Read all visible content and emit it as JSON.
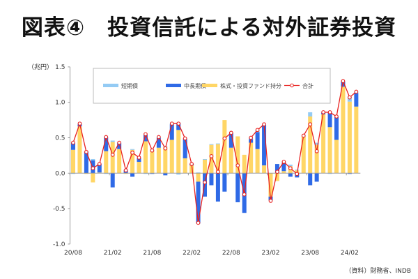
{
  "title": "図表④　投資信託による対外証券投資",
  "source": "（資料）財務省、INDB",
  "chart_data": {
    "type": "bar",
    "title": "図表④　投資信託による対外証券投資",
    "ylabel": "（兆円）",
    "ylim": [
      -1.0,
      1.5
    ],
    "yticks": [
      "1.5",
      "1.0",
      "0.5",
      "0.0",
      "-0.5",
      "-1.0"
    ],
    "ytick_values": [
      1.5,
      1.0,
      0.5,
      0.0,
      -0.5,
      -1.0
    ],
    "xtick_labels": [
      "20/08",
      "21/02",
      "21/08",
      "22/02",
      "22/08",
      "23/02",
      "23/08",
      "24/02"
    ],
    "xtick_index": [
      0,
      6,
      12,
      18,
      24,
      30,
      36,
      42
    ],
    "categories": [
      "20/08",
      "20/09",
      "20/10",
      "20/11",
      "20/12",
      "21/01",
      "21/02",
      "21/03",
      "21/04",
      "21/05",
      "21/06",
      "21/07",
      "21/08",
      "21/09",
      "21/10",
      "21/11",
      "21/12",
      "22/01",
      "22/02",
      "22/03",
      "22/04",
      "22/05",
      "22/06",
      "22/07",
      "22/08",
      "22/09",
      "22/10",
      "22/11",
      "22/12",
      "23/01",
      "23/02",
      "23/03",
      "23/04",
      "23/05",
      "23/06",
      "23/07",
      "23/08",
      "23/09",
      "23/10",
      "23/11",
      "23/12",
      "24/01",
      "24/02",
      "24/03"
    ],
    "legend_position": "top",
    "series": [
      {
        "name": "短期債",
        "kind": "bar",
        "color": "#94cbf4",
        "values": [
          -0.01,
          0.01,
          0.01,
          0.02,
          0,
          -0.01,
          0.02,
          0,
          0.01,
          0.01,
          0.01,
          -0.01,
          0.01,
          0.01,
          0.01,
          0.01,
          -0.02,
          0.01,
          0,
          0.01,
          0.01,
          0.01,
          0.01,
          0,
          0.01,
          0,
          0,
          0.02,
          0.03,
          0.01,
          -0.01,
          0,
          0.02,
          0.02,
          0.01,
          0.01,
          0.06,
          0.03,
          0.01,
          -0.01,
          0.01,
          0.01,
          0.07,
          0.02
        ]
      },
      {
        "name": "中長期債",
        "kind": "bar",
        "color": "#2f6ae6",
        "values": [
          0.1,
          0.03,
          0.3,
          0.18,
          0.12,
          0.2,
          -0.2,
          0.09,
          0.04,
          -0.05,
          0.05,
          0.09,
          -0.01,
          0.14,
          -0.03,
          0.22,
          0.1,
          0.27,
          0.02,
          -0.59,
          -0.33,
          -0.17,
          -0.4,
          -0.26,
          0.2,
          -0.41,
          -0.56,
          0.05,
          0.24,
          0.57,
          -0.05,
          0.13,
          0.11,
          -0.05,
          -0.06,
          0,
          -0.17,
          -0.12,
          0.02,
          0.21,
          0.32,
          0.07,
          -0.01,
          0.19
        ]
      },
      {
        "name": "株式・投資ファンド持分",
        "kind": "bar",
        "color": "#ffd666",
        "values": [
          0.33,
          0.66,
          -0.01,
          -0.13,
          0.01,
          0.31,
          0.44,
          0.34,
          -0.01,
          0.33,
          0.16,
          0.45,
          0.32,
          0.36,
          0.37,
          0.47,
          0.61,
          0.21,
          0.11,
          -0.12,
          0.19,
          0.4,
          0.41,
          0.75,
          0.36,
          0.52,
          0.26,
          0.43,
          0.34,
          0.11,
          -0.33,
          -0.11,
          0.03,
          0.1,
          0.04,
          0.52,
          0.8,
          0.4,
          0.83,
          0.65,
          0.47,
          1.22,
          1.01,
          0.94
        ]
      },
      {
        "name": "合計",
        "kind": "line",
        "color": "#e8201e",
        "values": [
          0.43,
          0.7,
          0.3,
          0.07,
          0.13,
          0.51,
          0.26,
          0.43,
          0.04,
          0.29,
          0.22,
          0.55,
          0.32,
          0.51,
          0.35,
          0.7,
          0.7,
          0.49,
          0.13,
          -0.7,
          -0.13,
          0.24,
          0.02,
          0.49,
          0.57,
          0.11,
          -0.3,
          0.5,
          0.61,
          0.69,
          -0.39,
          0.02,
          0.16,
          0.07,
          -0.01,
          0.53,
          0.69,
          0.31,
          0.86,
          0.86,
          0.8,
          1.3,
          1.07,
          1.15
        ]
      }
    ]
  }
}
